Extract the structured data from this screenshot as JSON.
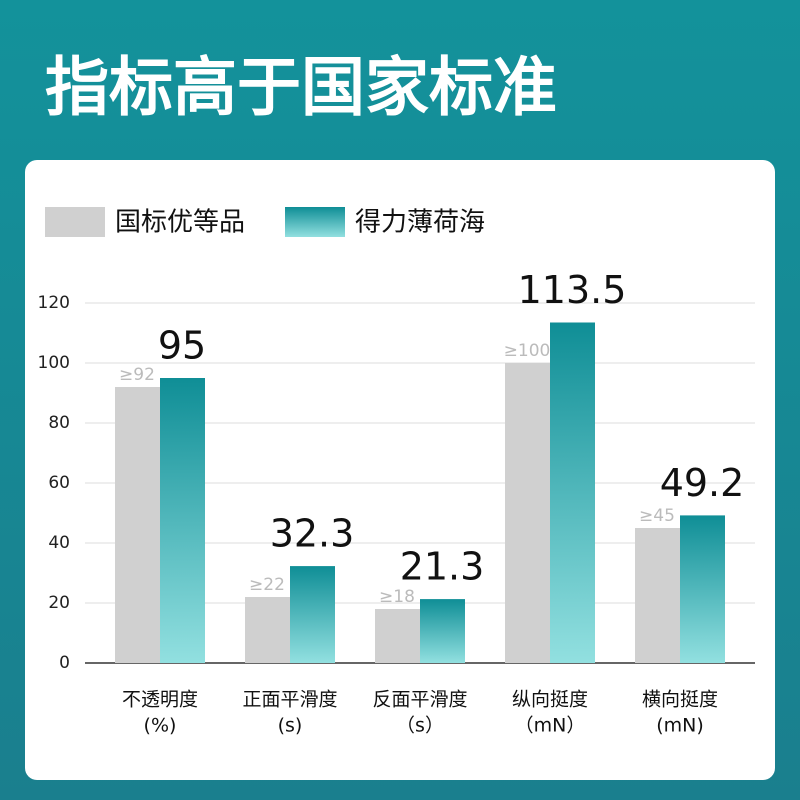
{
  "chart_data": {
    "type": "bar",
    "title": "指标高于国家标准",
    "categories": [
      "不透明度",
      "正面平滑度",
      "反面平滑度",
      "纵向挺度",
      "横向挺度"
    ],
    "category_units": [
      "(%)",
      "(s)",
      "（s）",
      "（mN）",
      "(mN)"
    ],
    "series": [
      {
        "name": "国标优等品",
        "color": "#d0d0d0",
        "values": [
          92,
          22,
          18,
          100,
          45
        ],
        "value_labels": [
          "≥92",
          "≥22",
          "≥18",
          "≥100",
          "≥45"
        ]
      },
      {
        "name": "得力薄荷海",
        "color": "#0f8e96",
        "values": [
          95,
          32.3,
          21.3,
          113.5,
          49.2
        ]
      }
    ],
    "ylim": [
      0,
      120
    ],
    "yticks": [
      0,
      20,
      40,
      60,
      80,
      100,
      120
    ],
    "grid": true
  }
}
